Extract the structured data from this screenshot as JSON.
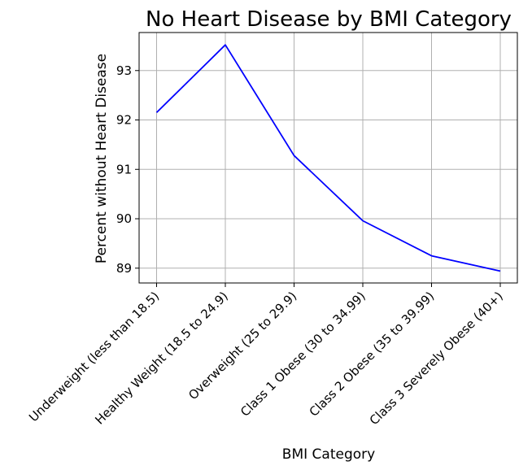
{
  "chart_data": {
    "type": "line",
    "title": "No Heart Disease by BMI Category",
    "xlabel": "BMI Category",
    "ylabel": "Percent without Heart Disease",
    "categories": [
      "Underweight (less than 18.5)",
      "Healthy Weight (18.5 to 24.9)",
      "Overweight (25 to 29.9)",
      "Class 1 Obese (30 to 34.99)",
      "Class 2 Obese (35 to 39.99)",
      "Class 3 Severely Obese (40+)"
    ],
    "series": [
      {
        "values": [
          92.15,
          93.52,
          91.28,
          89.96,
          89.25,
          88.94
        ],
        "color": "#0000ff"
      }
    ],
    "yticks": [
      89,
      90,
      91,
      92,
      93
    ],
    "ylim": [
      88.7,
      93.77
    ],
    "grid": true,
    "axis_color": "#000000",
    "grid_color": "#b0b0b0"
  }
}
